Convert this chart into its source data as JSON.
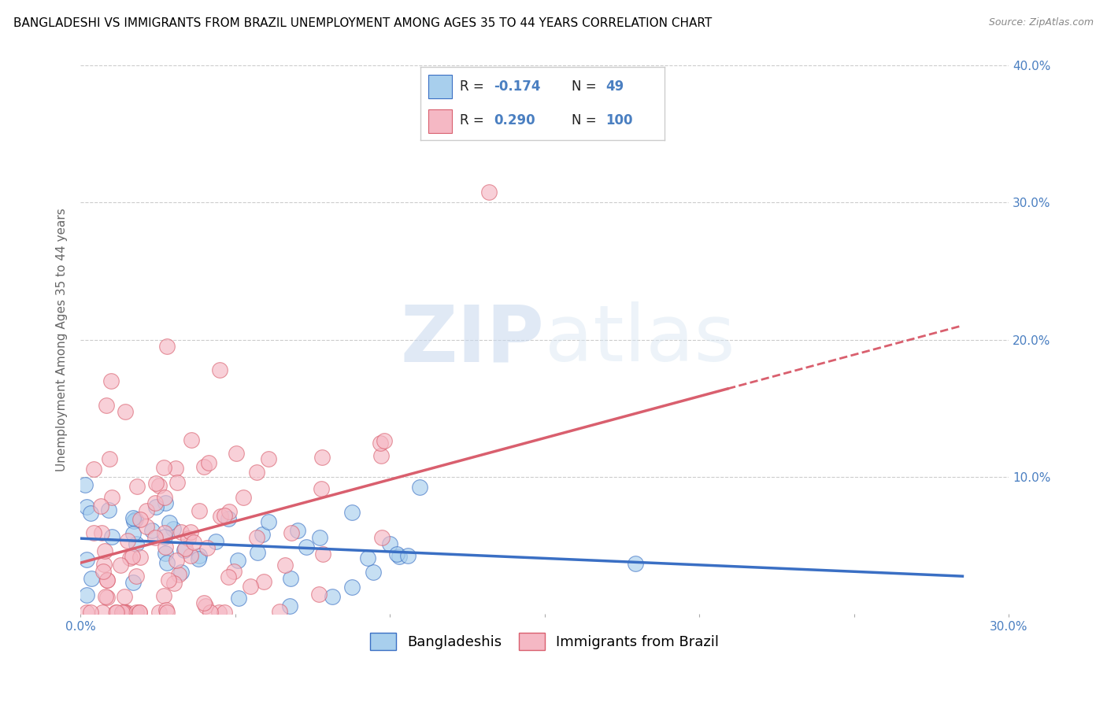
{
  "title": "BANGLADESHI VS IMMIGRANTS FROM BRAZIL UNEMPLOYMENT AMONG AGES 35 TO 44 YEARS CORRELATION CHART",
  "source": "Source: ZipAtlas.com",
  "ylabel": "Unemployment Among Ages 35 to 44 years",
  "xlim": [
    0.0,
    0.3
  ],
  "ylim": [
    0.0,
    0.4
  ],
  "xticks": [
    0.0,
    0.05,
    0.1,
    0.15,
    0.2,
    0.25,
    0.3
  ],
  "xticklabels_show": [
    "0.0%",
    "",
    "",
    "",
    "",
    "",
    "30.0%"
  ],
  "yticks_right": [
    0.1,
    0.2,
    0.3,
    0.4
  ],
  "yticklabels_right": [
    "10.0%",
    "20.0%",
    "30.0%",
    "40.0%"
  ],
  "legend_r_blue": "-0.174",
  "legend_n_blue": "49",
  "legend_r_pink": "0.290",
  "legend_n_pink": "100",
  "blue_color": "#A8CFED",
  "pink_color": "#F5B8C4",
  "trend_blue_color": "#3A6FC4",
  "trend_pink_color": "#D95F6E",
  "watermark_zip": "ZIP",
  "watermark_atlas": "atlas",
  "background_color": "#FFFFFF",
  "grid_color": "#CCCCCC",
  "title_fontsize": 11,
  "axis_label_fontsize": 11,
  "tick_fontsize": 11,
  "legend_fontsize": 13,
  "N_blue": 49,
  "N_pink": 100,
  "R_blue": -0.174,
  "R_pink": 0.29,
  "blue_label": "Bangladeshis",
  "pink_label": "Immigrants from Brazil"
}
